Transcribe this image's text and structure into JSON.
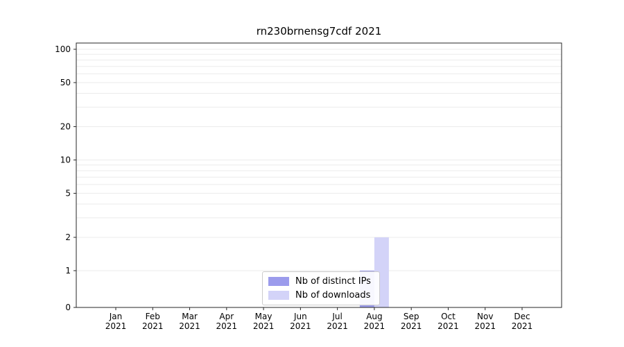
{
  "title": "rn230brnensg7cdf 2021",
  "chart_data": {
    "type": "bar",
    "title": "rn230brnensg7cdf 2021",
    "categories": [
      "Jan",
      "Feb",
      "Mar",
      "Apr",
      "May",
      "Jun",
      "Jul",
      "Aug",
      "Sep",
      "Oct",
      "Nov",
      "Dec"
    ],
    "tick_year": "2021",
    "series": [
      {
        "name": "Nb of distinct IPs",
        "color": "#9b9bec",
        "values": [
          0,
          0,
          0,
          0,
          0,
          0,
          0,
          1,
          0,
          0,
          0,
          0
        ]
      },
      {
        "name": "Nb of downloads",
        "color": "#d3d3f8",
        "values": [
          0,
          0,
          0,
          0,
          0,
          0,
          0,
          2,
          0,
          0,
          0,
          0
        ]
      }
    ],
    "yscale": "symlog",
    "yticks": [
      0,
      1,
      2,
      5,
      10,
      20,
      50,
      100
    ],
    "ylim": [
      0,
      100
    ],
    "grid": "horizontal-minor",
    "legend_position": "lower center",
    "xlabel": "",
    "ylabel": ""
  }
}
